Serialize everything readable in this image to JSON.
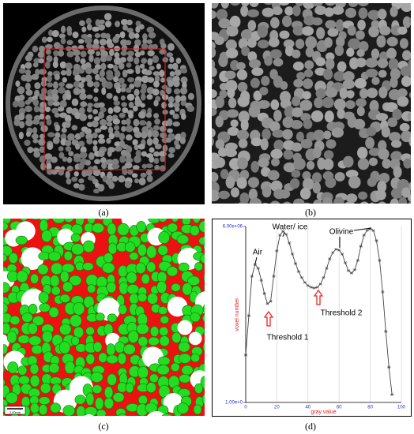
{
  "panels": [
    {
      "label": "(a)"
    },
    {
      "label": "(b)"
    },
    {
      "label": "(c)"
    },
    {
      "label": "(d)"
    }
  ],
  "scale_bar": "2.00mm",
  "chart_data": {
    "type": "line",
    "x_label": "gray value",
    "y_label": "voxel number",
    "annotations": [
      "Air",
      "Water/ ice",
      "Olivine",
      "Threshold 1",
      "Threshold 2"
    ],
    "x": [
      0,
      2,
      4,
      6,
      8,
      10,
      12,
      14,
      16,
      18,
      20,
      22,
      24,
      26,
      28,
      30,
      32,
      34,
      36,
      38,
      40,
      42,
      44,
      46,
      48,
      50,
      52,
      54,
      56,
      58,
      60,
      62,
      64,
      66,
      68,
      70,
      72,
      74,
      76,
      78,
      80,
      82,
      84,
      86,
      88,
      90,
      92,
      94
    ],
    "series": [
      {
        "name": "voxels",
        "color": "#444444",
        "values": [
          67,
          2200,
          73000,
          208000,
          147000,
          51000,
          15700,
          6300,
          7800,
          73000,
          686000,
          2780000,
          3940000,
          2980000,
          1380000,
          518000,
          223000,
          110000,
          64000,
          41700,
          31500,
          27400,
          25500,
          27400,
          36200,
          64000,
          147000,
          340000,
          596000,
          789000,
          735000,
          518000,
          240000,
          119000,
          96000,
          128000,
          296000,
          1040000,
          2780000,
          4230000,
          4860000,
          4230000,
          1700000,
          296000,
          18000,
          545,
          23,
          2
        ]
      }
    ],
    "xlim": [
      0,
      100
    ],
    "xticks": [
      0,
      20,
      40,
      60,
      80,
      100
    ],
    "ylim": [
      1,
      6000000
    ],
    "yticks": [
      {
        "value": 6000000,
        "label": "6.00e+06"
      },
      {
        "value": 1,
        "label": "1.00e+0"
      }
    ],
    "log_y": true,
    "grid": true
  }
}
